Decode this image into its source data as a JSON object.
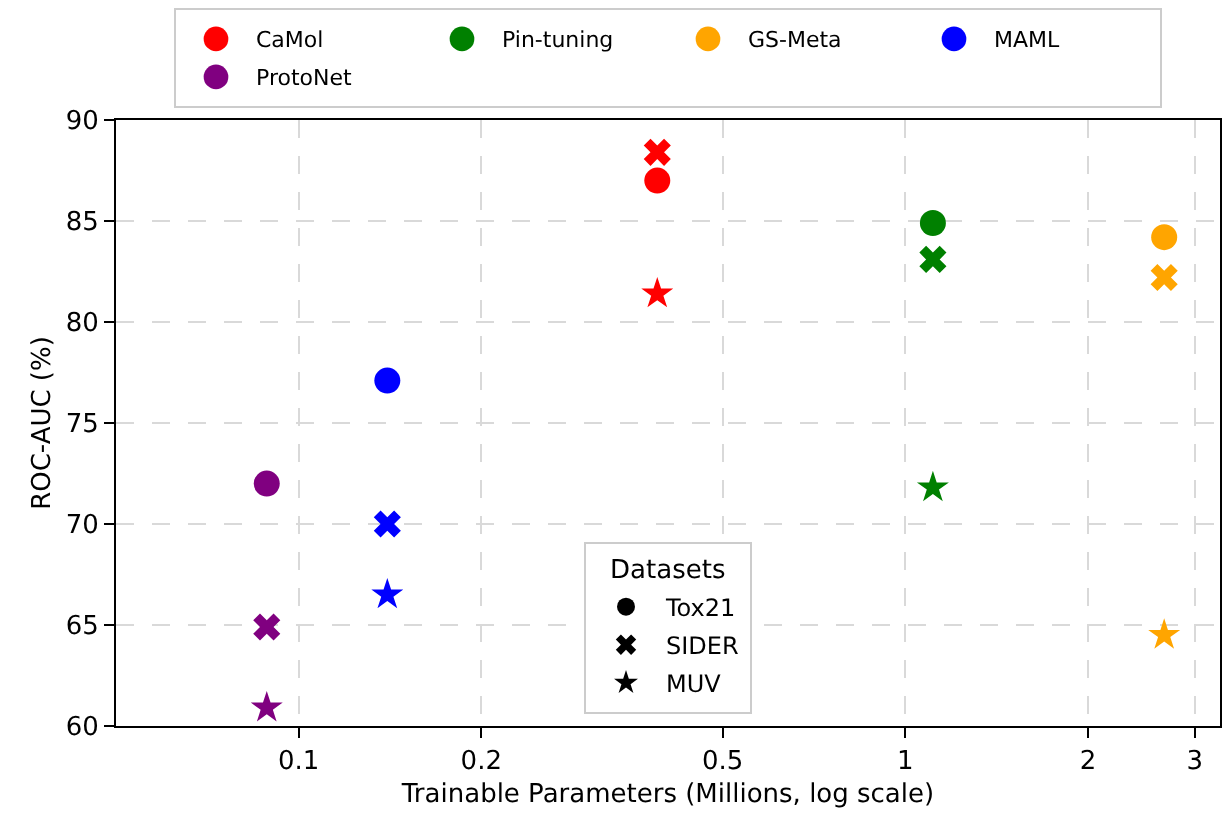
{
  "chart_data": {
    "type": "scatter",
    "xlabel": "Trainable Parameters (Millions, log scale)",
    "ylabel": "ROC-AUC (%)",
    "legend_title": "Datasets",
    "series": [
      {
        "name": "CaMol",
        "color": "#ff0000",
        "marker": [
          "circle",
          "cross",
          "star"
        ],
        "x": [
          0.39,
          0.39,
          0.39
        ],
        "values": [
          87.0,
          88.4,
          81.4
        ]
      },
      {
        "name": "Pin-tuning",
        "color": "#008000",
        "marker": [
          "circle",
          "cross",
          "star"
        ],
        "x": [
          1.11,
          1.11,
          1.11
        ],
        "values": [
          84.9,
          83.1,
          71.8
        ]
      },
      {
        "name": "GS-Meta",
        "color": "#ffa500",
        "marker": [
          "circle",
          "cross",
          "star"
        ],
        "x": [
          2.67,
          2.67,
          2.67
        ],
        "values": [
          84.2,
          82.2,
          64.5
        ]
      },
      {
        "name": "MAML",
        "color": "#0000ff",
        "marker": [
          "circle",
          "cross",
          "star"
        ],
        "x": [
          0.14,
          0.14,
          0.14
        ],
        "values": [
          77.1,
          70.0,
          66.5
        ]
      },
      {
        "name": "ProtoNet",
        "color": "#800080",
        "marker": [
          "circle",
          "cross",
          "star"
        ],
        "x": [
          0.0886,
          0.0886,
          0.0886
        ],
        "values": [
          72.0,
          64.9,
          60.9
        ]
      },
      {
        "name": "Tox21",
        "color": "#000000",
        "marker": "circle",
        "x": [
          null
        ],
        "values": [
          null
        ]
      },
      {
        "name": "SIDER",
        "color": "#000000",
        "marker": "cross",
        "x": [
          null
        ],
        "values": [
          null
        ]
      },
      {
        "name": "MUV",
        "color": "#000000",
        "marker": "star",
        "x": [
          null
        ],
        "values": [
          null
        ]
      }
    ],
    "log": "x",
    "xlim": [
      0.05,
      3.3
    ],
    "xticks": [
      0.1,
      0.2,
      0.5,
      1,
      2,
      3
    ],
    "ylim": [
      60,
      90
    ],
    "yticks": [
      60,
      65,
      70,
      75,
      80,
      85,
      90
    ],
    "grid": true,
    "legend": "top"
  }
}
